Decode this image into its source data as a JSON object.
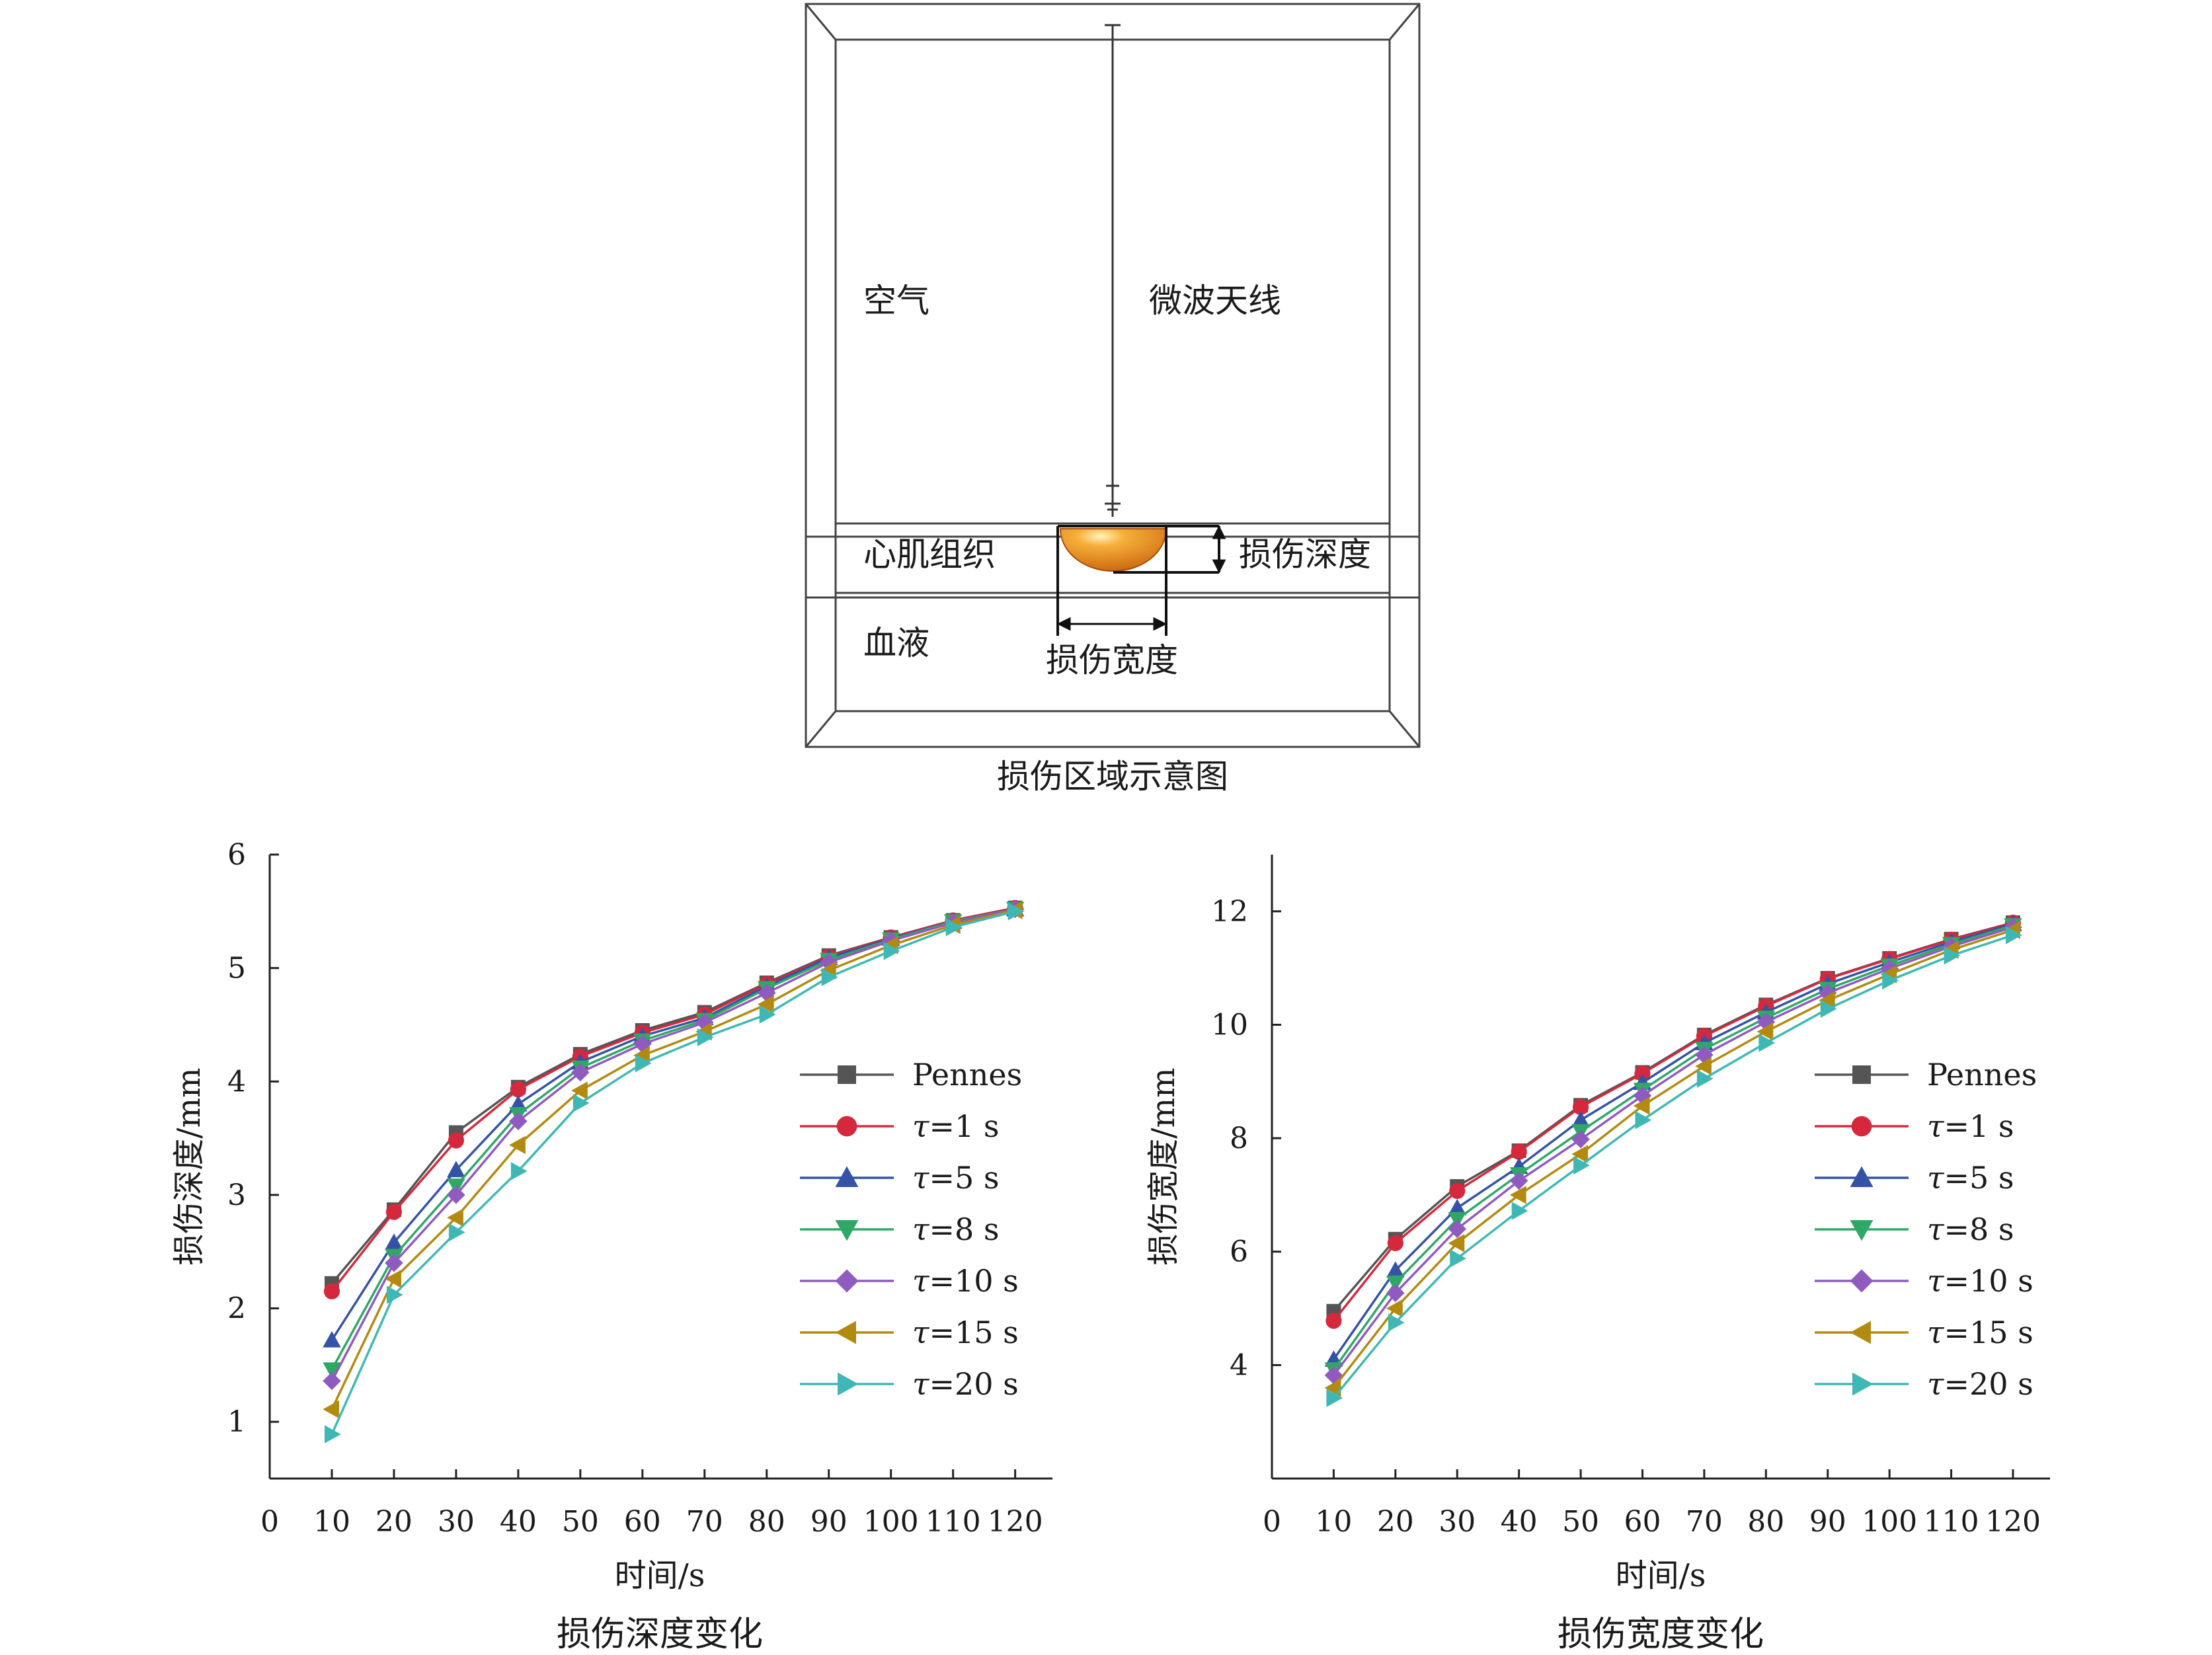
{
  "diagram": {
    "caption": "损伤区域示意图",
    "labels": {
      "air": "空气",
      "antenna": "微波天线",
      "myocardium": "心肌组织",
      "blood": "血液",
      "lesion_depth": "损伤深度",
      "lesion_width": "损伤宽度"
    },
    "colors": {
      "lesion_outer": "#c8600a",
      "lesion_inner": "#f6b03a",
      "lesion_core": "#fff3c0"
    }
  },
  "chart_data": [
    {
      "type": "line",
      "title": "损伤深度变化",
      "xlabel": "时间/s",
      "ylabel": "损伤深度/mm",
      "x": [
        10,
        20,
        30,
        40,
        50,
        60,
        70,
        80,
        90,
        100,
        110,
        120
      ],
      "xlim": [
        0,
        120
      ],
      "xticks": [
        0,
        10,
        20,
        30,
        40,
        50,
        60,
        70,
        80,
        90,
        100,
        110,
        120
      ],
      "ylim": [
        0.5,
        6
      ],
      "yticks": [
        1,
        2,
        3,
        4,
        5,
        6
      ],
      "legend_position": "right",
      "grid": false,
      "series": [
        {
          "name": "Pennes",
          "marker": "square",
          "color": "#555555",
          "values": [
            2.22,
            2.87,
            3.55,
            3.95,
            4.24,
            4.45,
            4.61,
            4.87,
            5.11,
            5.27,
            5.42,
            5.53
          ]
        },
        {
          "name": "τ=1 s",
          "marker": "circle",
          "color": "#d6283c",
          "values": [
            2.15,
            2.85,
            3.48,
            3.93,
            4.22,
            4.43,
            4.59,
            4.86,
            5.1,
            5.27,
            5.42,
            5.53
          ]
        },
        {
          "name": "τ=5 s",
          "marker": "triangle-up",
          "color": "#3553a6",
          "values": [
            1.72,
            2.58,
            3.22,
            3.8,
            4.17,
            4.4,
            4.56,
            4.84,
            5.09,
            5.26,
            5.41,
            5.52
          ]
        },
        {
          "name": "τ=8 s",
          "marker": "triangle-down",
          "color": "#2fa865",
          "values": [
            1.46,
            2.46,
            3.08,
            3.71,
            4.12,
            4.36,
            4.54,
            4.82,
            5.07,
            5.25,
            5.41,
            5.52
          ]
        },
        {
          "name": "τ=10 s",
          "marker": "diamond",
          "color": "#8f5bbf",
          "values": [
            1.36,
            2.4,
            3.0,
            3.65,
            4.08,
            4.33,
            4.52,
            4.78,
            5.05,
            5.24,
            5.4,
            5.52
          ]
        },
        {
          "name": "τ=15 s",
          "marker": "triangle-left",
          "color": "#b38a10",
          "values": [
            1.11,
            2.26,
            2.8,
            3.44,
            3.92,
            4.23,
            4.44,
            4.68,
            4.98,
            5.2,
            5.38,
            5.51
          ]
        },
        {
          "name": "τ=20 s",
          "marker": "triangle-right",
          "color": "#3fb8b5",
          "values": [
            0.89,
            2.12,
            2.67,
            3.21,
            3.81,
            4.16,
            4.39,
            4.59,
            4.92,
            5.15,
            5.36,
            5.5
          ]
        }
      ]
    },
    {
      "type": "line",
      "title": "损伤宽度变化",
      "xlabel": "时间/s",
      "ylabel": "损伤宽度/mm",
      "x": [
        10,
        20,
        30,
        40,
        50,
        60,
        70,
        80,
        90,
        100,
        110,
        120
      ],
      "xlim": [
        0,
        120
      ],
      "xticks": [
        0,
        10,
        20,
        30,
        40,
        50,
        60,
        70,
        80,
        90,
        100,
        110,
        120
      ],
      "ylim": [
        2,
        13
      ],
      "yticks": [
        4,
        6,
        8,
        10,
        12
      ],
      "legend_position": "right",
      "grid": false,
      "series": [
        {
          "name": "Pennes",
          "marker": "square",
          "color": "#555555",
          "values": [
            4.95,
            6.22,
            7.15,
            7.78,
            8.58,
            9.16,
            9.82,
            10.35,
            10.82,
            11.17,
            11.51,
            11.8
          ]
        },
        {
          "name": "τ=1 s",
          "marker": "circle",
          "color": "#d6283c",
          "values": [
            4.78,
            6.15,
            7.07,
            7.76,
            8.55,
            9.14,
            9.8,
            10.33,
            10.81,
            11.16,
            11.5,
            11.8
          ]
        },
        {
          "name": "τ=5 s",
          "marker": "triangle-up",
          "color": "#3553a6",
          "values": [
            4.1,
            5.67,
            6.77,
            7.5,
            8.32,
            8.98,
            9.68,
            10.22,
            10.72,
            11.1,
            11.46,
            11.78
          ]
        },
        {
          "name": "τ=8 s",
          "marker": "triangle-down",
          "color": "#2fa865",
          "values": [
            3.92,
            5.45,
            6.57,
            7.36,
            8.12,
            8.85,
            9.57,
            10.12,
            10.63,
            11.04,
            11.42,
            11.75
          ]
        },
        {
          "name": "τ=10 s",
          "marker": "diamond",
          "color": "#8f5bbf",
          "values": [
            3.82,
            5.27,
            6.4,
            7.25,
            7.98,
            8.75,
            9.47,
            10.05,
            10.56,
            10.99,
            11.38,
            11.72
          ]
        },
        {
          "name": "τ=15 s",
          "marker": "triangle-left",
          "color": "#b38a10",
          "values": [
            3.6,
            5.0,
            6.15,
            7.0,
            7.72,
            8.57,
            9.27,
            9.88,
            10.43,
            10.89,
            11.32,
            11.67
          ]
        },
        {
          "name": "τ=20 s",
          "marker": "triangle-right",
          "color": "#3fb8b5",
          "values": [
            3.42,
            4.75,
            5.88,
            6.72,
            7.52,
            8.32,
            9.05,
            9.68,
            10.28,
            10.78,
            11.22,
            11.58
          ]
        }
      ]
    }
  ]
}
